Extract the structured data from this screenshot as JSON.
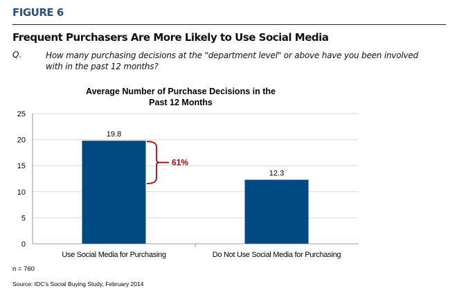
{
  "figure_label": "FIGURE 6",
  "heading": "Frequent Purchasers Are More Likely to Use Social Media",
  "question_label": "Q.",
  "question_text": "How many purchasing decisions at the \"department level\" or above have you been involved with in the past 12 months?",
  "chart_data": {
    "type": "bar",
    "title": "Average Number of Purchase Decisions in the Past 12 Months",
    "title_lines": [
      "Average Number of Purchase Decisions in the",
      "Past 12 Months"
    ],
    "categories": [
      "Use Social Media for Purchasing",
      "Do Not Use Social Media for Purchasing"
    ],
    "values": [
      19.8,
      12.3
    ],
    "data_labels": [
      "19.8",
      "12.3"
    ],
    "ylim": [
      0,
      25
    ],
    "yticks": [
      0,
      5,
      10,
      15,
      20,
      25
    ],
    "grid": true,
    "bar_color": "#004a84",
    "annotation": {
      "text": "61%",
      "color": "#c00000"
    }
  },
  "sample_note": "n = 760",
  "source": "Source: IDC's Social Buying Study, February 2014"
}
